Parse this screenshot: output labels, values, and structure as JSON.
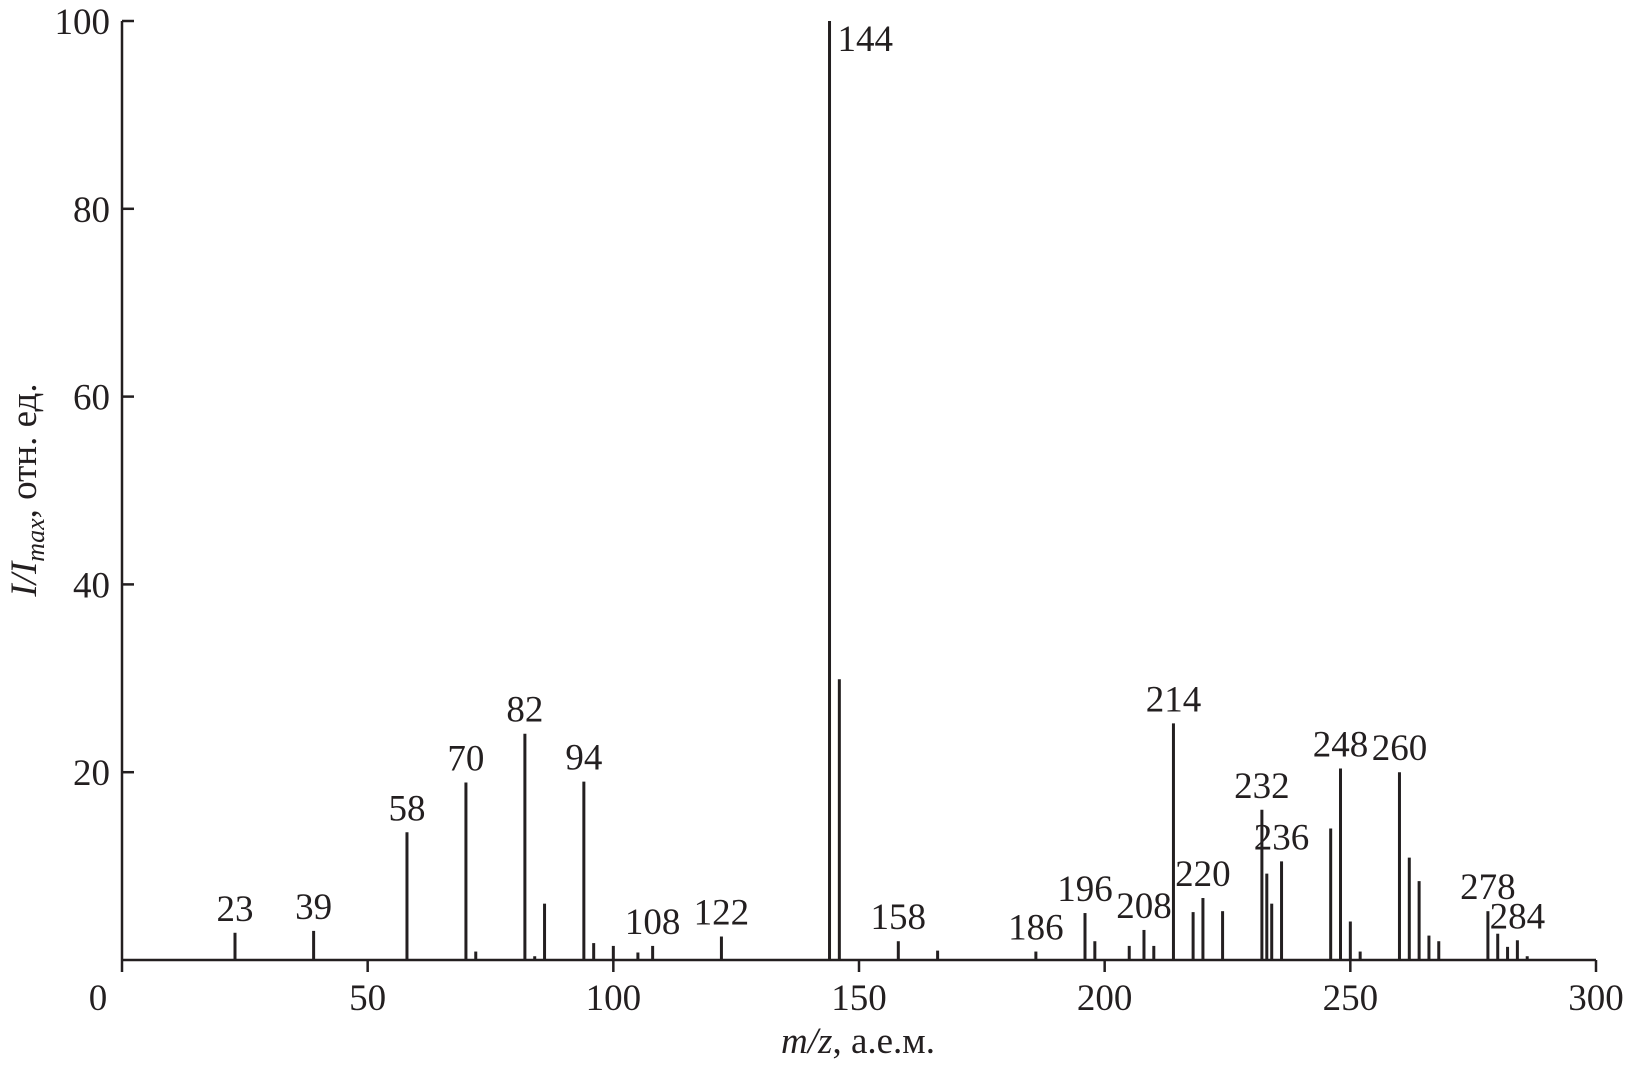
{
  "chart_data": {
    "type": "stem",
    "xlabel": [
      "m/z",
      ", а.е.м."
    ],
    "ylabel": [
      "I/I",
      "max",
      ", отн. ед."
    ],
    "x": [
      23,
      39,
      58,
      70,
      72,
      82,
      84,
      86,
      94,
      96,
      100,
      105,
      108,
      122,
      144,
      146,
      158,
      166,
      186,
      196,
      198,
      205,
      208,
      210,
      214,
      218,
      220,
      224,
      232,
      233,
      234,
      236,
      246,
      248,
      250,
      252,
      260,
      262,
      264,
      266,
      268,
      278,
      280,
      282,
      284,
      286
    ],
    "values": [
      2.9,
      3.1,
      13.6,
      18.9,
      0.9,
      24.1,
      0.4,
      6.0,
      19.0,
      1.8,
      1.5,
      0.8,
      1.5,
      2.5,
      100,
      29.9,
      2.0,
      1.0,
      0.9,
      5.0,
      2.0,
      1.5,
      3.2,
      1.5,
      25.2,
      5.1,
      6.6,
      5.2,
      16.0,
      9.2,
      6.0,
      10.5,
      14.0,
      20.4,
      4.1,
      0.9,
      20.0,
      10.9,
      8.4,
      2.6,
      2.0,
      5.2,
      2.8,
      1.4,
      2.1,
      0.4
    ],
    "peak_labels": [
      23,
      39,
      58,
      70,
      82,
      94,
      108,
      122,
      144,
      158,
      186,
      196,
      208,
      214,
      220,
      232,
      236,
      248,
      260,
      278,
      284
    ],
    "color": "#231f20",
    "xlim": [
      0,
      300
    ],
    "xticks": [
      0,
      50,
      100,
      150,
      200,
      250,
      300
    ],
    "ylim": [
      0,
      100
    ],
    "yticks": [
      20,
      40,
      60,
      80,
      100
    ]
  }
}
